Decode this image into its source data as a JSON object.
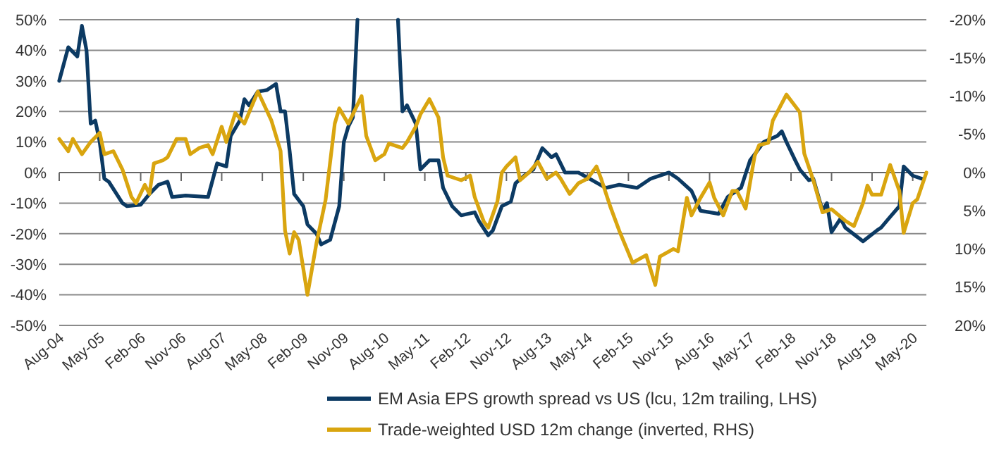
{
  "chart_data": {
    "type": "line",
    "legend": "bottom",
    "grid": "y",
    "marker": "none",
    "line_style": "solid",
    "xlim": [
      "2004-08",
      "2020-08"
    ],
    "xticks": [
      {
        "value": "2004-08",
        "label": "Aug-04"
      },
      {
        "value": "2005-05",
        "label": "May-05"
      },
      {
        "value": "2006-02",
        "label": "Feb-06"
      },
      {
        "value": "2006-11",
        "label": "Nov-06"
      },
      {
        "value": "2007-08",
        "label": "Aug-07"
      },
      {
        "value": "2008-05",
        "label": "May-08"
      },
      {
        "value": "2009-02",
        "label": "Feb-09"
      },
      {
        "value": "2009-11",
        "label": "Nov-09"
      },
      {
        "value": "2010-08",
        "label": "Aug-10"
      },
      {
        "value": "2011-05",
        "label": "May-11"
      },
      {
        "value": "2012-02",
        "label": "Feb-12"
      },
      {
        "value": "2012-11",
        "label": "Nov-12"
      },
      {
        "value": "2013-08",
        "label": "Aug-13"
      },
      {
        "value": "2014-05",
        "label": "May-14"
      },
      {
        "value": "2015-02",
        "label": "Feb-15"
      },
      {
        "value": "2015-11",
        "label": "Nov-15"
      },
      {
        "value": "2016-08",
        "label": "Aug-16"
      },
      {
        "value": "2017-05",
        "label": "May-17"
      },
      {
        "value": "2018-02",
        "label": "Feb-18"
      },
      {
        "value": "2018-11",
        "label": "Nov-18"
      },
      {
        "value": "2019-08",
        "label": "Aug-19"
      },
      {
        "value": "2020-05",
        "label": "May-20"
      }
    ],
    "ylim": [
      -50,
      50
    ],
    "yticks": [
      {
        "value": -50,
        "label": "-50%"
      },
      {
        "value": -40,
        "label": "-40%"
      },
      {
        "value": -30,
        "label": "-30%"
      },
      {
        "value": -20,
        "label": "-20%"
      },
      {
        "value": -10,
        "label": "-10%"
      },
      {
        "value": 0,
        "label": "0%"
      },
      {
        "value": 10,
        "label": "10%"
      },
      {
        "value": 20,
        "label": "20%"
      },
      {
        "value": 30,
        "label": "30%"
      },
      {
        "value": 40,
        "label": "40%"
      },
      {
        "value": 50,
        "label": "50%"
      }
    ],
    "y2lim": [
      20,
      -20
    ],
    "y2ticks": [
      {
        "value": -20,
        "label": "-20%"
      },
      {
        "value": -15,
        "label": "-15%"
      },
      {
        "value": -10,
        "label": "-10%"
      },
      {
        "value": -5,
        "label": "-5%"
      },
      {
        "value": 0,
        "label": "0%"
      },
      {
        "value": 5,
        "label": "5%"
      },
      {
        "value": 10,
        "label": "10%"
      },
      {
        "value": 15,
        "label": "15%"
      },
      {
        "value": 20,
        "label": "20%"
      }
    ],
    "series": [
      {
        "name": "EM Asia EPS growth spread vs US (lcu, 12m trailing, LHS)",
        "color": "#0c3a63",
        "x": [
          "2004-08",
          "2004-10",
          "2004-12",
          "2005-01",
          "2005-02",
          "2005-03",
          "2005-04",
          "2005-05",
          "2005-06",
          "2005-07",
          "2005-10",
          "2005-11",
          "2006-02",
          "2006-04",
          "2006-06",
          "2006-08",
          "2006-09",
          "2006-12",
          "2007-05",
          "2007-07",
          "2007-09",
          "2007-10",
          "2007-12",
          "2008-01",
          "2008-02",
          "2008-04",
          "2008-06",
          "2008-08",
          "2008-09",
          "2008-10",
          "2008-11",
          "2008-12",
          "2009-02",
          "2009-03",
          "2009-05",
          "2009-06",
          "2009-08",
          "2009-10",
          "2009-11",
          "2009-12",
          "2010-01",
          "2010-02",
          "2010-03",
          "2010-11",
          "2010-12",
          "2011-01",
          "2011-03",
          "2011-04",
          "2011-06",
          "2011-08",
          "2011-09",
          "2011-11",
          "2012-01",
          "2012-04",
          "2012-05",
          "2012-07",
          "2012-08",
          "2012-10",
          "2012-12",
          "2013-01",
          "2013-03",
          "2013-05",
          "2013-07",
          "2013-09",
          "2013-10",
          "2013-12",
          "2014-03",
          "2014-06",
          "2014-09",
          "2014-12",
          "2015-04",
          "2015-07",
          "2015-11",
          "2016-01",
          "2016-04",
          "2016-06",
          "2016-08",
          "2016-10",
          "2016-12",
          "2017-03",
          "2017-05",
          "2017-06",
          "2017-08",
          "2017-11",
          "2017-12",
          "2018-01",
          "2018-03",
          "2018-04",
          "2018-06",
          "2018-07",
          "2018-09",
          "2018-10",
          "2018-11",
          "2019-01",
          "2019-02",
          "2019-06",
          "2019-09",
          "2019-10",
          "2019-12",
          "2020-02",
          "2020-03",
          "2020-05",
          "2020-07"
        ],
        "values": [
          30,
          41,
          38,
          48,
          40,
          16,
          17,
          10,
          -2,
          -3,
          -10,
          -11,
          -10.5,
          -7,
          -4,
          -3,
          -8,
          -7.5,
          -8,
          3,
          2,
          12,
          17,
          24,
          22,
          26.5,
          27,
          29,
          20,
          20,
          7,
          -7,
          -11,
          -17,
          -20,
          -23.5,
          -22,
          -11,
          10,
          15,
          18,
          50,
          null,
          50,
          20,
          22,
          16,
          1,
          4,
          4,
          -5,
          -11,
          -14,
          -13,
          -16,
          -20.5,
          -19,
          -11,
          -9.5,
          -3.5,
          -1,
          1,
          8,
          5,
          6,
          0,
          0,
          -2.5,
          -5,
          -4,
          -5,
          -2,
          0,
          -2,
          -6,
          -12.5,
          -13,
          -13.5,
          -8,
          -5,
          4,
          6,
          10,
          12,
          13.5,
          10,
          4,
          1,
          -2.5,
          -2,
          -12.5,
          -10,
          -19.5,
          -15,
          -18,
          -22.5,
          -19,
          -18,
          -14.5,
          -11,
          2,
          -1,
          -2
        ]
      },
      {
        "name": "Trade-weighted USD 12m change (inverted, RHS)",
        "color": "#d9a50f",
        "axis": "y2",
        "x": [
          "2004-08",
          "2004-10",
          "2004-11",
          "2005-01",
          "2005-03",
          "2005-05",
          "2005-06",
          "2005-08",
          "2005-10",
          "2005-12",
          "2006-01",
          "2006-03",
          "2006-04",
          "2006-05",
          "2006-07",
          "2006-08",
          "2006-10",
          "2006-12",
          "2007-01",
          "2007-03",
          "2007-05",
          "2007-06",
          "2007-08",
          "2007-09",
          "2007-11",
          "2008-01",
          "2008-04",
          "2008-07",
          "2008-09",
          "2008-10",
          "2008-11",
          "2008-12",
          "2009-01",
          "2009-03",
          "2009-05",
          "2009-07",
          "2009-09",
          "2009-10",
          "2009-12",
          "2010-03",
          "2010-04",
          "2010-06",
          "2010-08",
          "2010-09",
          "2010-12",
          "2011-01",
          "2011-03",
          "2011-04",
          "2011-06",
          "2011-08",
          "2011-09",
          "2011-10",
          "2012-01",
          "2012-03",
          "2012-04",
          "2012-06",
          "2012-07",
          "2012-09",
          "2012-10",
          "2012-11",
          "2013-01",
          "2013-02",
          "2013-04",
          "2013-06",
          "2013-08",
          "2013-10",
          "2013-11",
          "2014-01",
          "2014-03",
          "2014-05",
          "2014-07",
          "2014-08",
          "2014-10",
          "2014-12",
          "2015-03",
          "2015-06",
          "2015-08",
          "2015-09",
          "2015-12",
          "2016-01",
          "2016-03",
          "2016-04",
          "2016-06",
          "2016-08",
          "2016-09",
          "2016-11",
          "2017-01",
          "2017-02",
          "2017-04",
          "2017-06",
          "2017-07",
          "2017-09",
          "2017-10",
          "2018-01",
          "2018-04",
          "2018-05",
          "2018-07",
          "2018-09",
          "2018-11",
          "2019-02",
          "2019-04",
          "2019-06",
          "2019-07",
          "2019-08",
          "2019-10",
          "2019-12",
          "2020-02",
          "2020-03",
          "2020-05",
          "2020-06",
          "2020-08"
        ],
        "values": [
          -4.4,
          -2.8,
          -4.4,
          -2.4,
          -4,
          -5.2,
          -2.4,
          -2.8,
          -0.4,
          3.2,
          4,
          1.6,
          2.8,
          -1.2,
          -1.6,
          -2,
          -4.4,
          -4.4,
          -2.4,
          -3.2,
          -3.6,
          -2.4,
          -6,
          -4,
          -7.8,
          -6.4,
          -10.6,
          -6.8,
          -2.8,
          7.6,
          10.6,
          7.8,
          8.8,
          16,
          9.2,
          3.6,
          -6.4,
          -8.4,
          -6.4,
          -10,
          -4.8,
          -1.6,
          -2.4,
          -3.8,
          -3.2,
          -4,
          -6,
          -7.6,
          -9.6,
          -7.2,
          -2,
          0.4,
          1,
          0.4,
          3.2,
          6.4,
          7.2,
          3.8,
          0,
          -0.8,
          -2,
          1,
          0,
          -1.4,
          0.8,
          0,
          0.8,
          2.8,
          1.4,
          0.8,
          -0.8,
          0.8,
          4.4,
          7.6,
          11.8,
          10.8,
          14.7,
          11,
          10,
          10.3,
          3.3,
          5.6,
          3.3,
          1.3,
          3.3,
          5.6,
          2.4,
          2.4,
          4.7,
          -2.2,
          -3.6,
          -3.9,
          -6.8,
          -10.2,
          -7.9,
          -2.5,
          1,
          5.2,
          4.8,
          6.3,
          7,
          4,
          1.7,
          2.9,
          2.9,
          -1,
          2.4,
          7.9,
          4,
          3.5,
          0
        ]
      }
    ]
  }
}
